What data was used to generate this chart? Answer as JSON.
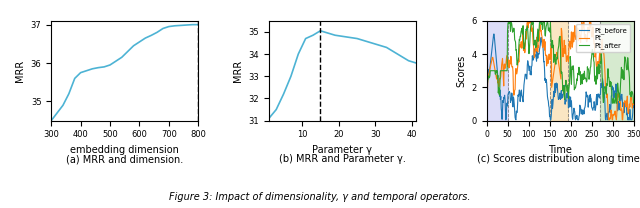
{
  "fig_width": 6.4,
  "fig_height": 2.08,
  "dpi": 100,
  "plot1": {
    "x": [
      300,
      320,
      340,
      360,
      380,
      400,
      420,
      440,
      460,
      480,
      500,
      520,
      540,
      560,
      580,
      600,
      620,
      640,
      660,
      680,
      700,
      720,
      740,
      760,
      780,
      800
    ],
    "y": [
      34.5,
      34.7,
      34.9,
      35.2,
      35.6,
      35.75,
      35.8,
      35.85,
      35.88,
      35.9,
      35.95,
      36.05,
      36.15,
      36.3,
      36.45,
      36.55,
      36.65,
      36.72,
      36.8,
      36.9,
      36.95,
      36.97,
      36.98,
      36.99,
      37.0,
      37.0
    ],
    "dashed_x": 800,
    "xlabel": "embedding dimension",
    "ylabel": "MRR",
    "ylim": [
      34.5,
      37.1
    ],
    "xlim": [
      300,
      800
    ],
    "xticks": [
      300,
      400,
      500,
      600,
      700,
      800
    ],
    "subcaption": "(a) MRR and dimension.",
    "line_color": "#4db3d4"
  },
  "plot2": {
    "x": [
      1,
      3,
      5,
      7,
      9,
      11,
      13,
      15,
      17,
      19,
      21,
      23,
      25,
      27,
      29,
      31,
      33,
      35,
      37,
      39,
      41
    ],
    "y": [
      31.1,
      31.5,
      32.2,
      33.0,
      34.0,
      34.7,
      34.85,
      35.05,
      34.95,
      34.85,
      34.8,
      34.75,
      34.7,
      34.6,
      34.5,
      34.4,
      34.3,
      34.1,
      33.9,
      33.7,
      33.6
    ],
    "dashed_x": 15,
    "xlabel": "Parameter γ",
    "ylabel": "MRR",
    "ylim": [
      31,
      35.5
    ],
    "xlim": [
      1,
      41
    ],
    "xticks": [
      10,
      20,
      30,
      40
    ],
    "subcaption": "(b) MRR and Parameter γ.",
    "line_color": "#4db3d4"
  },
  "plot3": {
    "subcaption": "(c) Scores distribution along time.",
    "xlabel": "Time",
    "ylabel": "Scores",
    "ylim": [
      0,
      6
    ],
    "xlim": [
      0,
      350
    ],
    "xticks": [
      0,
      50,
      100,
      150,
      200,
      250,
      300,
      350
    ],
    "xtick_labels": [
      "0",
      "50",
      "100",
      "150",
      "200",
      "250",
      "300",
      "350"
    ],
    "shaded_regions": [
      {
        "xmin": 0,
        "xmax": 50,
        "color": "#aaaaee",
        "alpha": 0.4
      },
      {
        "xmin": 150,
        "xmax": 195,
        "color": "#f5c97a",
        "alpha": 0.45
      },
      {
        "xmin": 270,
        "xmax": 350,
        "color": "#99cc88",
        "alpha": 0.4
      }
    ],
    "dashed_lines": [
      0,
      50,
      150,
      195,
      270
    ],
    "legend": [
      "Pt_before",
      "Pt",
      "Pt_after"
    ],
    "line_colors": [
      "#1f77b4",
      "#ff7f0e",
      "#2ca02c"
    ]
  },
  "caption_main": "Figure 3: Impact of dimensionality, γ and temporal operators."
}
